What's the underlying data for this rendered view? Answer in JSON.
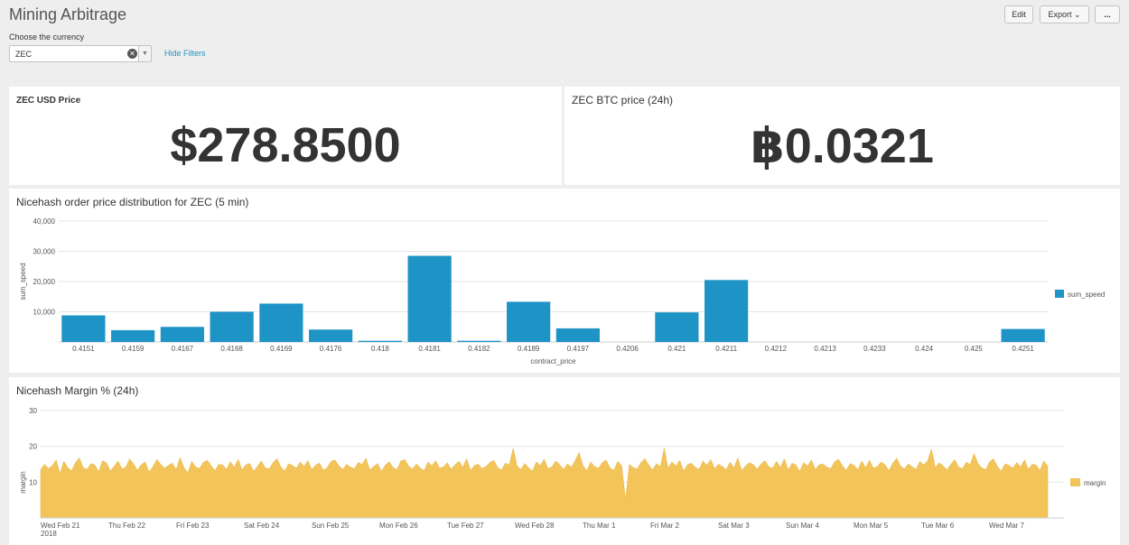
{
  "header": {
    "title": "Mining Arbitrage",
    "filter_label": "Choose the currency",
    "currency_value": "ZEC",
    "hide_filters": "Hide Filters",
    "edit_label": "Edit",
    "export_label": "Export ⌄",
    "more_label": "..."
  },
  "panels": {
    "usd_price": {
      "title": "ZEC USD Price",
      "value": "$278.8500"
    },
    "btc_price": {
      "title": "ZEC BTC price (24h)",
      "value": "฿0.0321"
    },
    "distribution": {
      "title": "Nicehash order price distribution for ZEC (5 min)"
    },
    "margin": {
      "title": "Nicehash Margin % (24h)"
    }
  },
  "colors": {
    "bar": "#1e93c6",
    "area": "#f2c45a",
    "link": "#1e93c6"
  },
  "chart_data": [
    {
      "type": "bar",
      "title": "Nicehash order price distribution for ZEC (5 min)",
      "xlabel": "contract_price",
      "ylabel": "sum_speed",
      "ylim": [
        0,
        40000
      ],
      "yticks": [
        "40,000",
        "30,000",
        "20,000",
        "10,000"
      ],
      "categories": [
        "0.4151",
        "0.4159",
        "0.4167",
        "0.4168",
        "0.4169",
        "0.4176",
        "0.418",
        "0.4181",
        "0.4182",
        "0.4189",
        "0.4197",
        "0.4206",
        "0.421",
        "0.4211",
        "0.4212",
        "0.4213",
        "0.4233",
        "0.424",
        "0.425",
        "0.4251"
      ],
      "series": [
        {
          "name": "sum_speed",
          "values": [
            8800,
            3900,
            5000,
            10000,
            12700,
            4100,
            400,
            28500,
            400,
            13300,
            4500,
            0,
            9800,
            20500,
            0,
            0,
            0,
            0,
            0,
            4300
          ]
        }
      ],
      "legend": "right"
    },
    {
      "type": "area",
      "title": "Nicehash Margin % (24h)",
      "xlabel": "",
      "ylabel": "margin",
      "ylim": [
        0,
        30
      ],
      "yticks": [
        "30",
        "20",
        "10"
      ],
      "xticks": [
        "Wed Feb 21\n2018",
        "Thu Feb 22",
        "Fri Feb 23",
        "Sat Feb 24",
        "Sun Feb 25",
        "Mon Feb 26",
        "Tue Feb 27",
        "Wed Feb 28",
        "Thu Mar 1",
        "Fri Mar 2",
        "Sat Mar 3",
        "Sun Mar 4",
        "Mon Mar 5",
        "Tue Mar 6",
        "Wed Mar 7"
      ],
      "series": [
        {
          "name": "margin",
          "values": [
            13.5,
            15.0,
            13.8,
            14.6,
            16.2,
            12.4,
            15.8,
            14.1,
            13.2,
            15.5,
            16.8,
            14.0,
            13.6,
            15.2,
            14.8,
            12.9,
            16.0,
            15.4,
            13.1,
            14.5,
            15.9,
            13.7,
            14.2,
            16.5,
            15.1,
            13.3,
            14.9,
            15.6,
            12.8,
            14.4,
            16.3,
            15.0,
            13.9,
            14.7,
            15.3,
            13.5,
            16.9,
            14.1,
            12.6,
            15.8,
            14.3,
            13.8,
            15.5,
            16.1,
            14.6,
            13.2,
            15.0,
            14.8,
            13.6,
            15.7,
            14.2,
            16.4,
            13.4,
            14.9,
            15.2,
            13.0,
            14.5,
            15.9,
            14.0,
            13.7,
            15.4,
            16.6,
            14.3,
            13.1,
            15.1,
            14.7,
            13.9,
            15.6,
            14.4,
            16.0,
            13.5,
            14.8,
            15.3,
            13.3,
            14.1,
            15.8,
            16.2,
            14.6,
            13.6,
            15.0,
            14.2,
            13.8,
            15.5,
            14.9,
            16.7,
            13.4,
            14.4,
            15.2,
            13.0,
            14.8,
            15.7,
            14.1,
            13.5,
            15.9,
            16.3,
            14.5,
            13.7,
            15.1,
            14.0,
            13.2,
            15.6,
            14.6,
            16.0,
            13.9,
            14.3,
            15.4,
            13.6,
            14.9,
            15.8,
            14.2,
            16.5,
            13.3,
            14.7,
            15.0,
            13.8,
            14.4,
            15.5,
            16.1,
            14.1,
            13.4,
            15.3,
            14.8,
            19.5,
            14.5,
            13.6,
            15.2,
            14.0,
            13.1,
            15.7,
            14.6,
            16.4,
            13.8,
            14.3,
            15.9,
            14.9,
            13.5,
            15.1,
            14.2,
            16.0,
            18.3,
            14.7,
            13.2,
            15.6,
            14.4,
            13.9,
            15.4,
            16.2,
            14.0,
            13.3,
            15.8,
            14.6,
            5.0,
            15.0,
            14.1,
            13.7,
            15.5,
            16.6,
            14.8,
            13.4,
            15.2,
            14.3,
            19.5,
            13.9,
            15.7,
            14.5,
            16.1,
            13.1,
            14.9,
            15.3,
            14.2,
            13.6,
            15.9,
            14.7,
            16.3,
            13.8,
            15.0,
            14.4,
            13.5,
            15.6,
            14.0,
            16.8,
            13.2,
            14.6,
            15.4,
            14.9,
            13.7,
            15.1,
            16.0,
            14.3,
            13.9,
            15.8,
            14.1,
            16.5,
            13.4,
            15.3,
            14.8,
            13.0,
            15.5,
            14.5,
            16.2,
            13.6,
            14.9,
            15.0,
            14.2,
            13.8,
            15.7,
            16.4,
            14.6,
            13.3,
            15.2,
            14.7,
            13.5,
            15.9,
            14.0,
            16.1,
            13.9,
            14.4,
            15.6,
            14.9,
            13.2,
            15.3,
            16.7,
            14.5,
            13.7,
            15.1,
            14.3,
            13.6,
            15.8,
            14.8,
            16.0,
            19.2,
            14.1,
            15.4,
            14.6,
            13.4,
            15.0,
            16.3,
            14.2,
            13.8,
            15.6,
            14.9,
            18.0,
            15.2,
            14.0,
            13.5,
            15.7,
            16.5,
            14.4,
            13.1,
            15.1,
            14.7,
            13.9,
            15.5,
            14.3,
            16.2,
            13.6,
            15.0,
            14.8,
            13.3,
            15.9,
            14.5
          ]
        }
      ],
      "legend": "right"
    }
  ]
}
